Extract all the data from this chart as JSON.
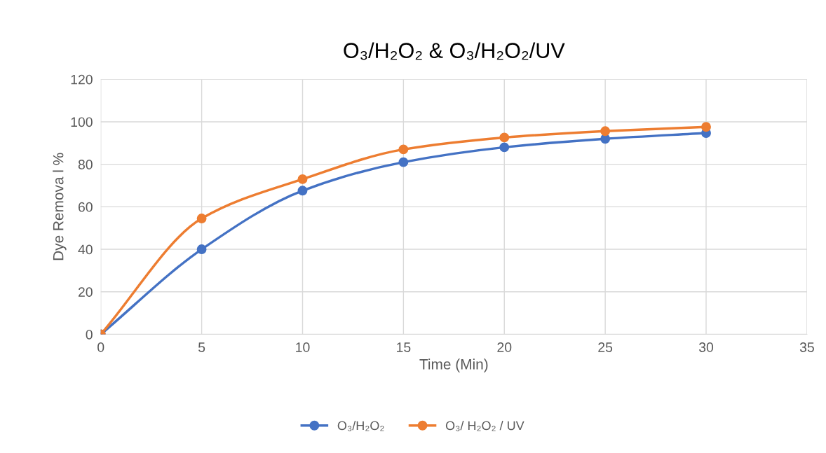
{
  "chart_data": {
    "type": "line",
    "title": "O₃/H₂O₂ & O₃/H₂O₂/UV",
    "xlabel": "Time (Min)",
    "ylabel": "Dye Remova l %",
    "x": [
      0,
      5,
      10,
      15,
      20,
      25,
      30
    ],
    "series": [
      {
        "name": "O₃/H₂O₂",
        "color": "#4472c4",
        "values": [
          0,
          40,
          67.6,
          81,
          88,
          92,
          94.7
        ]
      },
      {
        "name": "O₃/ H₂O₂ / UV",
        "color": "#ed7d31",
        "values": [
          0,
          54.5,
          73,
          87,
          92.6,
          95.6,
          97.6
        ]
      }
    ],
    "xlim": [
      0,
      35
    ],
    "xticks": [
      0,
      5,
      10,
      15,
      20,
      25,
      30,
      35
    ],
    "ylim": [
      0,
      120
    ],
    "yticks": [
      0,
      20,
      40,
      60,
      80,
      100,
      120
    ],
    "grid": true,
    "legend": "bottom",
    "marker": "circle",
    "line_style": "solid"
  }
}
